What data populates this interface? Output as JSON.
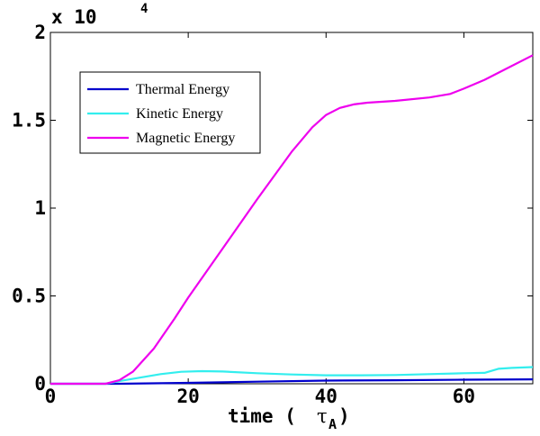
{
  "chart_data": {
    "type": "line",
    "title": "",
    "xlabel": "time (",
    "xlabel_symbol": "τ",
    "xlabel_subscript": "A",
    "xlabel_close": ")",
    "ylabel": "",
    "xlim": [
      0,
      70
    ],
    "ylim": [
      0,
      20000
    ],
    "xticks": [
      0,
      20,
      40,
      60
    ],
    "xtick_labels": [
      "0",
      "20",
      "40",
      "60"
    ],
    "yticks": [
      0,
      5000,
      10000,
      15000,
      20000
    ],
    "ytick_labels": [
      "0",
      "0.5",
      "1",
      "1.5",
      "2"
    ],
    "y_multiplier_text": "x 10",
    "y_multiplier_exponent": "4",
    "legend_position": "top-left",
    "series": [
      {
        "name": "Thermal Energy",
        "color": "#0000cc",
        "x": [
          0,
          10,
          20,
          30,
          40,
          50,
          60,
          70
        ],
        "y": [
          0,
          0,
          50,
          120,
          180,
          200,
          230,
          250
        ]
      },
      {
        "name": "Kinetic Energy",
        "color": "#33eeee",
        "x": [
          0,
          8,
          10,
          13,
          16,
          19,
          22,
          25,
          30,
          35,
          40,
          45,
          50,
          55,
          60,
          63,
          65,
          67,
          70
        ],
        "y": [
          0,
          0,
          150,
          350,
          550,
          680,
          720,
          700,
          600,
          530,
          480,
          480,
          500,
          550,
          600,
          620,
          850,
          900,
          950
        ]
      },
      {
        "name": "Magnetic Energy",
        "color": "#ee00ee",
        "x": [
          0,
          5,
          8,
          10,
          12,
          15,
          18,
          20,
          25,
          30,
          35,
          38,
          40,
          42,
          44,
          46,
          50,
          55,
          58,
          60,
          63,
          66,
          70
        ],
        "y": [
          0,
          0,
          0,
          200,
          700,
          2000,
          3700,
          4900,
          7700,
          10500,
          13200,
          14600,
          15300,
          15700,
          15900,
          16000,
          16100,
          16300,
          16500,
          16800,
          17300,
          17900,
          18700
        ]
      }
    ]
  }
}
